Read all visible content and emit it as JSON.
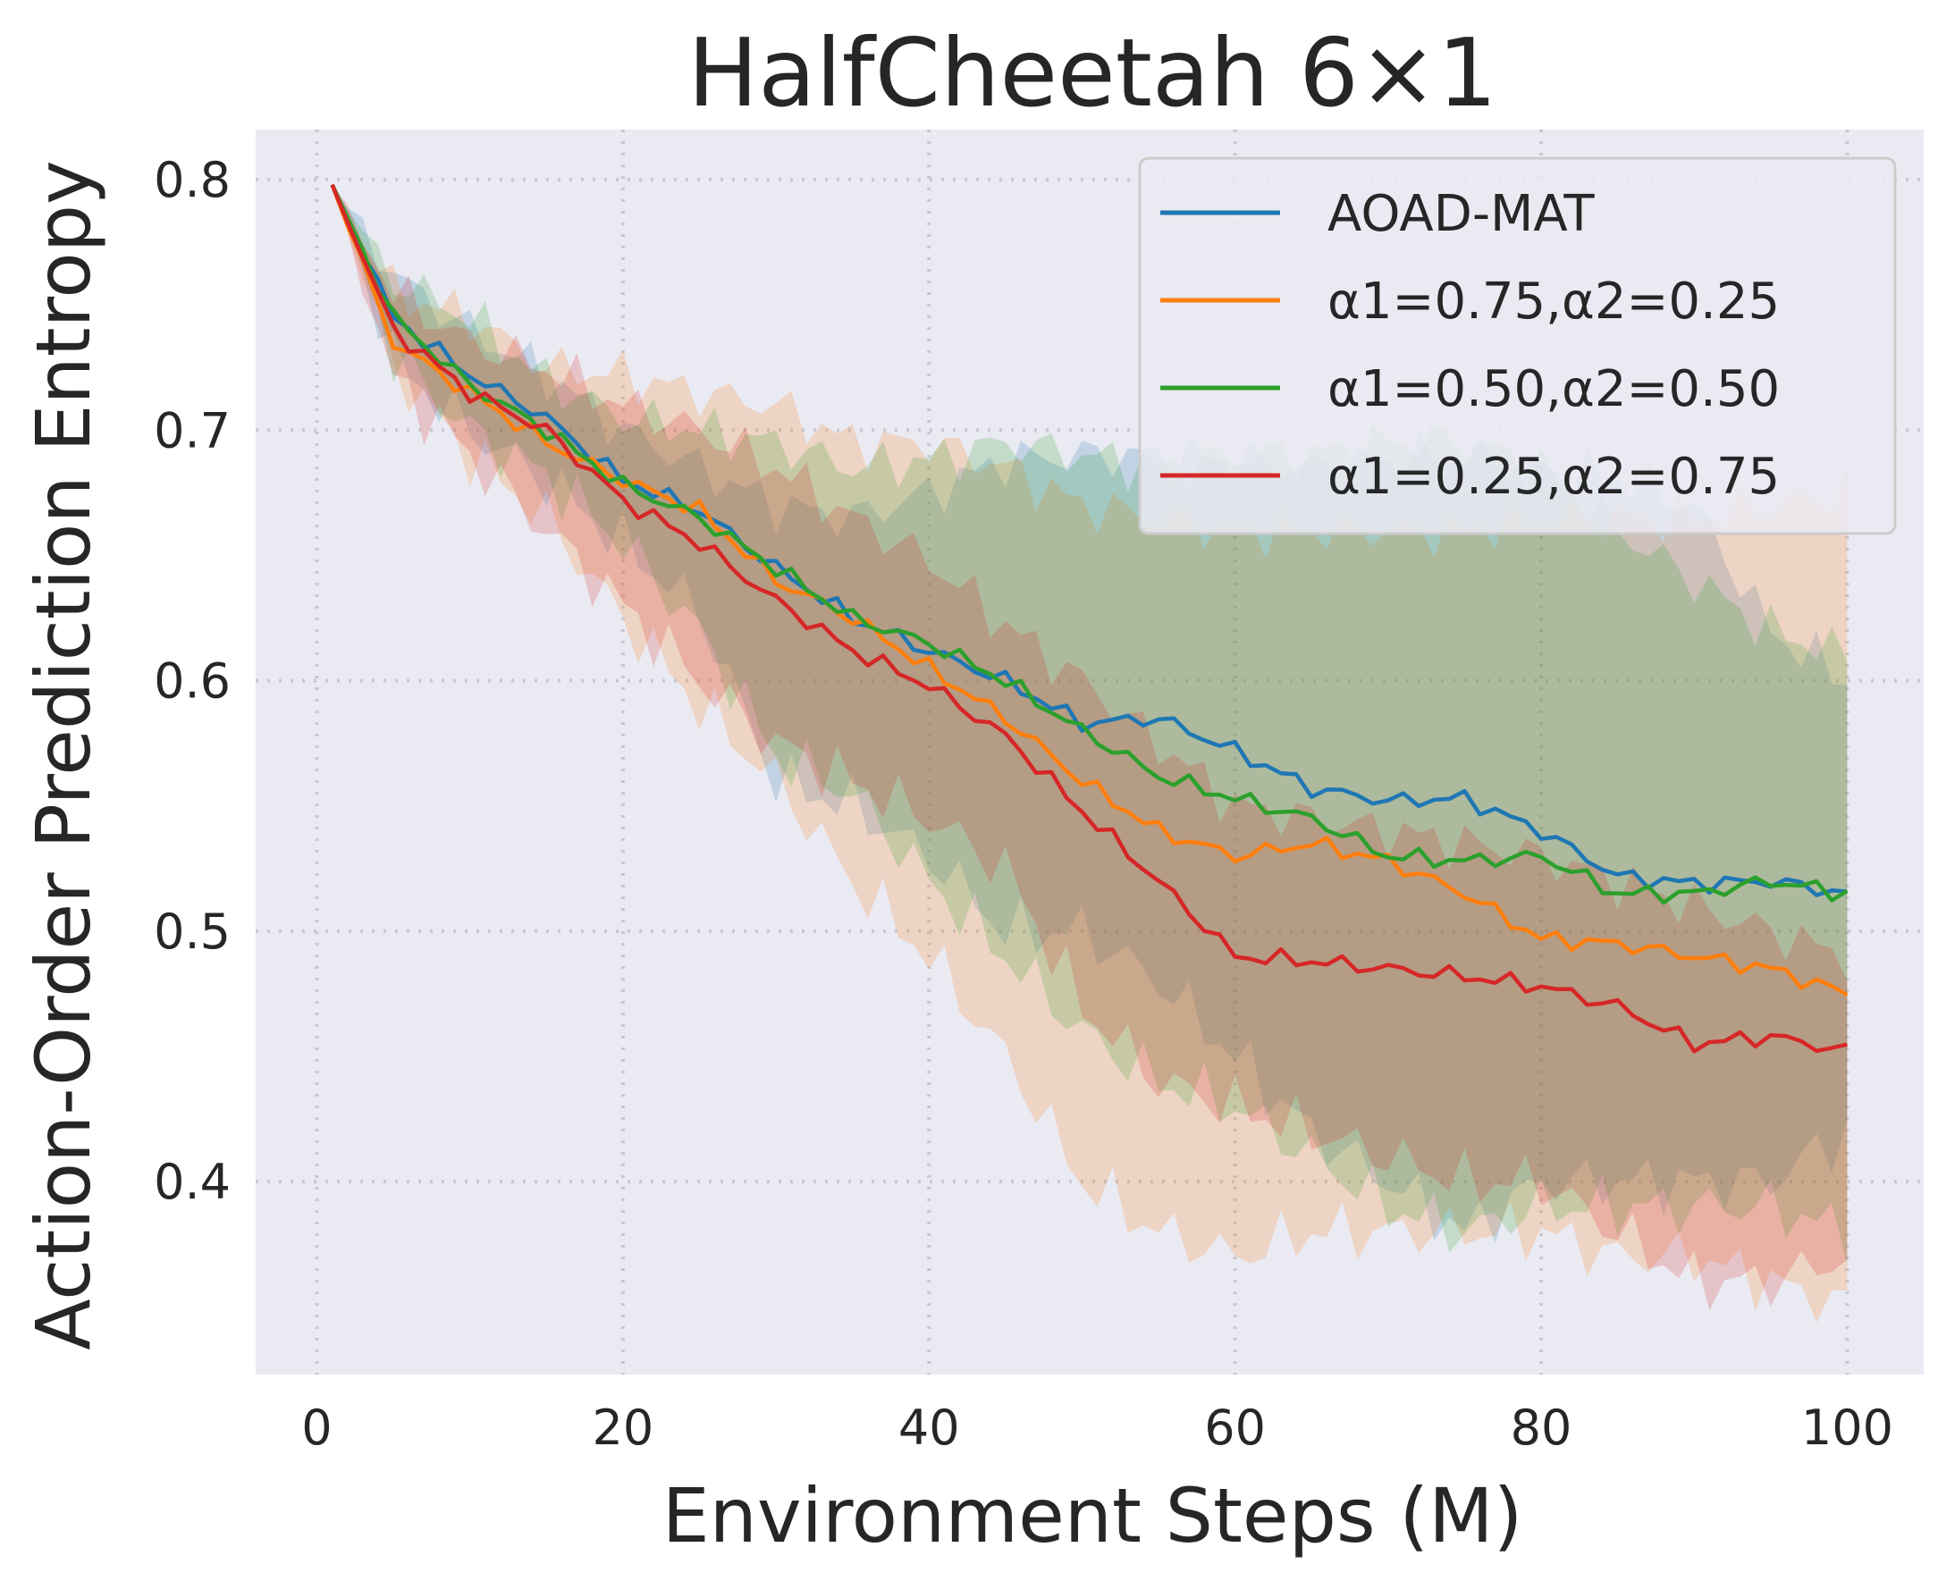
{
  "chart_data": {
    "type": "line",
    "title": "HalfCheetah 6×1",
    "xlabel": "Environment Steps (M)",
    "ylabel": "Action-Order Prediction Entropy",
    "xlim": [
      -4,
      105
    ],
    "ylim": [
      0.323,
      0.82
    ],
    "xticks": [
      0,
      20,
      40,
      60,
      80,
      100
    ],
    "yticks": [
      0.4,
      0.5,
      0.6,
      0.7,
      0.8
    ],
    "xtick_labels": [
      "0",
      "20",
      "40",
      "60",
      "80",
      "100"
    ],
    "ytick_labels": [
      "0.4",
      "0.5",
      "0.6",
      "0.7",
      "0.8"
    ],
    "grid": true,
    "legend_position": "top-right",
    "series": [
      {
        "name": "AOAD-MAT",
        "color": "#1f77b4",
        "knots_x": [
          1,
          5,
          10,
          15,
          20,
          25,
          30,
          35,
          40,
          45,
          50,
          55,
          60,
          65,
          70,
          75,
          80,
          85,
          90,
          95,
          100
        ],
        "knots_mean": [
          0.798,
          0.745,
          0.722,
          0.705,
          0.68,
          0.668,
          0.645,
          0.625,
          0.612,
          0.6,
          0.583,
          0.585,
          0.572,
          0.557,
          0.552,
          0.553,
          0.54,
          0.522,
          0.519,
          0.52,
          0.515
        ],
        "knots_lower": [
          0.798,
          0.728,
          0.7,
          0.68,
          0.655,
          0.627,
          0.56,
          0.55,
          0.53,
          0.5,
          0.5,
          0.48,
          0.45,
          0.42,
          0.4,
          0.38,
          0.4,
          0.4,
          0.4,
          0.4,
          0.42
        ],
        "knots_upper": [
          0.798,
          0.762,
          0.74,
          0.722,
          0.7,
          0.685,
          0.67,
          0.665,
          0.675,
          0.688,
          0.69,
          0.69,
          0.688,
          0.685,
          0.688,
          0.69,
          0.685,
          0.68,
          0.67,
          0.62,
          0.6
        ]
      },
      {
        "name": "α1=0.75,α2=0.25",
        "color": "#ff7f0e",
        "knots_x": [
          1,
          5,
          10,
          15,
          20,
          25,
          30,
          35,
          40,
          45,
          50,
          55,
          60,
          65,
          70,
          75,
          80,
          85,
          90,
          95,
          100
        ],
        "knots_mean": [
          0.798,
          0.735,
          0.715,
          0.695,
          0.68,
          0.668,
          0.64,
          0.625,
          0.605,
          0.585,
          0.56,
          0.54,
          0.53,
          0.535,
          0.528,
          0.515,
          0.497,
          0.495,
          0.49,
          0.485,
          0.475
        ],
        "knots_lower": [
          0.798,
          0.725,
          0.69,
          0.665,
          0.625,
          0.59,
          0.56,
          0.52,
          0.49,
          0.45,
          0.4,
          0.38,
          0.37,
          0.38,
          0.38,
          0.38,
          0.38,
          0.37,
          0.37,
          0.36,
          0.35
        ],
        "knots_upper": [
          0.798,
          0.755,
          0.745,
          0.725,
          0.722,
          0.715,
          0.71,
          0.695,
          0.695,
          0.685,
          0.67,
          0.665,
          0.66,
          0.66,
          0.66,
          0.66,
          0.665,
          0.665,
          0.665,
          0.67,
          0.675
        ]
      },
      {
        "name": "α1=0.50,α2=0.50",
        "color": "#2ca02c",
        "knots_x": [
          1,
          5,
          10,
          15,
          20,
          25,
          30,
          35,
          40,
          45,
          50,
          55,
          60,
          65,
          70,
          75,
          80,
          85,
          90,
          95,
          100
        ],
        "knots_mean": [
          0.798,
          0.745,
          0.718,
          0.7,
          0.678,
          0.665,
          0.645,
          0.625,
          0.615,
          0.6,
          0.58,
          0.562,
          0.553,
          0.545,
          0.53,
          0.528,
          0.53,
          0.515,
          0.515,
          0.52,
          0.515
        ],
        "knots_lower": [
          0.798,
          0.73,
          0.7,
          0.682,
          0.655,
          0.62,
          0.57,
          0.555,
          0.52,
          0.49,
          0.46,
          0.44,
          0.43,
          0.41,
          0.39,
          0.38,
          0.39,
          0.39,
          0.39,
          0.39,
          0.38
        ],
        "knots_upper": [
          0.798,
          0.76,
          0.745,
          0.72,
          0.705,
          0.7,
          0.695,
          0.685,
          0.688,
          0.695,
          0.69,
          0.685,
          0.69,
          0.69,
          0.695,
          0.695,
          0.685,
          0.66,
          0.64,
          0.62,
          0.61
        ]
      },
      {
        "name": "α1=0.25,α2=0.75",
        "color": "#d62728",
        "knots_x": [
          1,
          5,
          10,
          15,
          20,
          25,
          30,
          35,
          40,
          45,
          50,
          55,
          60,
          65,
          70,
          75,
          80,
          85,
          90,
          95,
          100
        ],
        "knots_mean": [
          0.798,
          0.74,
          0.715,
          0.7,
          0.672,
          0.655,
          0.632,
          0.612,
          0.598,
          0.578,
          0.548,
          0.52,
          0.49,
          0.488,
          0.485,
          0.482,
          0.478,
          0.47,
          0.455,
          0.458,
          0.452
        ],
        "knots_lower": [
          0.798,
          0.72,
          0.69,
          0.66,
          0.63,
          0.6,
          0.575,
          0.56,
          0.545,
          0.525,
          0.47,
          0.44,
          0.43,
          0.42,
          0.41,
          0.4,
          0.4,
          0.38,
          0.36,
          0.36,
          0.37
        ],
        "knots_upper": [
          0.798,
          0.755,
          0.735,
          0.725,
          0.71,
          0.7,
          0.685,
          0.665,
          0.648,
          0.622,
          0.6,
          0.575,
          0.55,
          0.545,
          0.54,
          0.535,
          0.53,
          0.52,
          0.51,
          0.5,
          0.49
        ]
      }
    ]
  }
}
